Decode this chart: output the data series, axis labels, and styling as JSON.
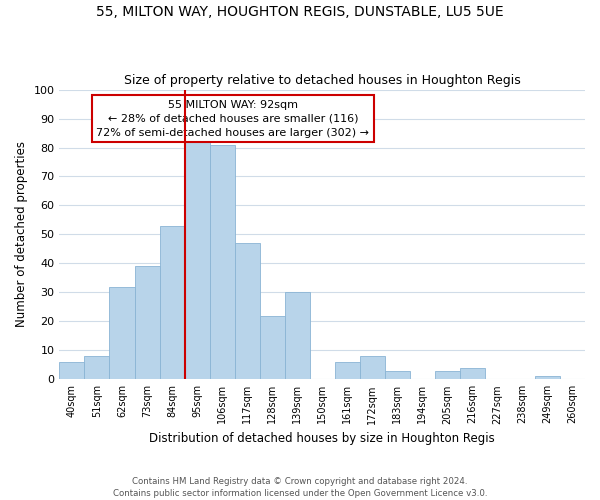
{
  "title": "55, MILTON WAY, HOUGHTON REGIS, DUNSTABLE, LU5 5UE",
  "subtitle": "Size of property relative to detached houses in Houghton Regis",
  "xlabel": "Distribution of detached houses by size in Houghton Regis",
  "ylabel": "Number of detached properties",
  "bar_labels": [
    "40sqm",
    "51sqm",
    "62sqm",
    "73sqm",
    "84sqm",
    "95sqm",
    "106sqm",
    "117sqm",
    "128sqm",
    "139sqm",
    "150sqm",
    "161sqm",
    "172sqm",
    "183sqm",
    "194sqm",
    "205sqm",
    "216sqm",
    "227sqm",
    "238sqm",
    "249sqm",
    "260sqm"
  ],
  "bar_values": [
    6,
    8,
    32,
    39,
    53,
    82,
    81,
    47,
    22,
    30,
    0,
    6,
    8,
    3,
    0,
    3,
    4,
    0,
    0,
    1,
    0
  ],
  "bar_color": "#b8d4ea",
  "bar_edge_color": "#8ab4d4",
  "vline_color": "#cc0000",
  "vline_x": 4.5,
  "ylim": [
    0,
    100
  ],
  "yticks": [
    0,
    10,
    20,
    30,
    40,
    50,
    60,
    70,
    80,
    90,
    100
  ],
  "annotation_title": "55 MILTON WAY: 92sqm",
  "annotation_line1": "← 28% of detached houses are smaller (116)",
  "annotation_line2": "72% of semi-detached houses are larger (302) →",
  "annotation_box_color": "#ffffff",
  "annotation_box_edge": "#cc0000",
  "footer_line1": "Contains HM Land Registry data © Crown copyright and database right 2024.",
  "footer_line2": "Contains public sector information licensed under the Open Government Licence v3.0.",
  "background_color": "#ffffff",
  "grid_color": "#d0dce8"
}
